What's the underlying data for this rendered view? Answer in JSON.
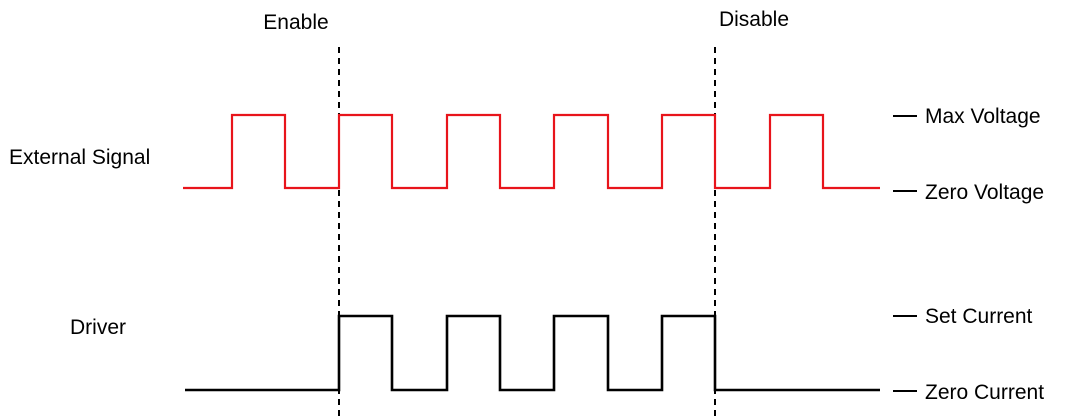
{
  "markers": {
    "enable": "Enable",
    "disable": "Disable"
  },
  "rows": {
    "external_signal": "External Signal",
    "driver": "Driver"
  },
  "levels": {
    "max_voltage": "Max Voltage",
    "zero_voltage": "Zero Voltage",
    "set_current": "Set Current",
    "zero_current": "Zero Current"
  },
  "colors": {
    "external_signal": "#e8141b",
    "driver": "#000000",
    "marker_line": "#000000",
    "text": "#000000"
  }
}
